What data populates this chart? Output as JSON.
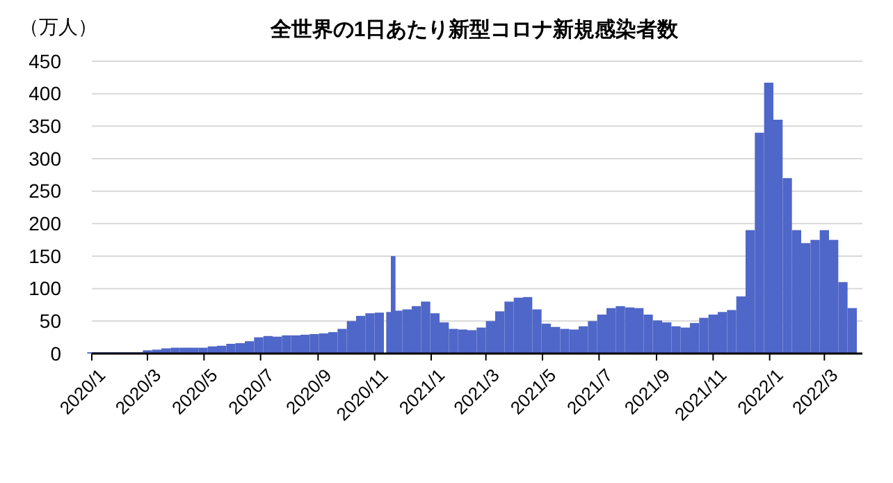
{
  "chart_data": {
    "type": "bar",
    "title": "全世界の1日あたり新型コロナ新規感染者数",
    "ylabel": "（万人）",
    "color": "#4f67c8",
    "grid": "y",
    "xlim": [
      "2020-01-01",
      "2022-04-11"
    ],
    "ylim": [
      0,
      450
    ],
    "yticks": [
      0,
      50,
      100,
      150,
      200,
      250,
      300,
      350,
      400,
      450
    ],
    "xticks": [
      {
        "value": "2020-01-01",
        "label": "2020/1"
      },
      {
        "value": "2020-03-01",
        "label": "2020/3"
      },
      {
        "value": "2020-05-01",
        "label": "2020/5"
      },
      {
        "value": "2020-07-01",
        "label": "2020/7"
      },
      {
        "value": "2020-09-01",
        "label": "2020/9"
      },
      {
        "value": "2020-11-01",
        "label": "2020/11"
      },
      {
        "value": "2021-01-01",
        "label": "2021/1"
      },
      {
        "value": "2021-03-01",
        "label": "2021/3"
      },
      {
        "value": "2021-05-01",
        "label": "2021/5"
      },
      {
        "value": "2021-07-01",
        "label": "2021/7"
      },
      {
        "value": "2021-09-01",
        "label": "2021/9"
      },
      {
        "value": "2021-11-01",
        "label": "2021/11"
      },
      {
        "value": "2022-01-01",
        "label": "2022/1"
      },
      {
        "value": "2022-03-01",
        "label": "2022/3"
      }
    ],
    "x": [
      "2020-01-01",
      "2020-01-11",
      "2020-01-21",
      "2020-01-31",
      "2020-02-10",
      "2020-02-20",
      "2020-03-01",
      "2020-03-11",
      "2020-03-21",
      "2020-03-31",
      "2020-04-10",
      "2020-04-20",
      "2020-04-30",
      "2020-05-10",
      "2020-05-20",
      "2020-05-30",
      "2020-06-09",
      "2020-06-19",
      "2020-06-29",
      "2020-07-09",
      "2020-07-19",
      "2020-07-29",
      "2020-08-08",
      "2020-08-18",
      "2020-08-28",
      "2020-09-07",
      "2020-09-17",
      "2020-09-27",
      "2020-10-07",
      "2020-10-17",
      "2020-10-27",
      "2020-11-06",
      "2020-11-16",
      "2020-11-21",
      "2020-11-26",
      "2020-12-06",
      "2020-12-16",
      "2020-12-26",
      "2021-01-05",
      "2021-01-15",
      "2021-01-25",
      "2021-02-04",
      "2021-02-14",
      "2021-02-24",
      "2021-03-06",
      "2021-03-16",
      "2021-03-26",
      "2021-04-05",
      "2021-04-15",
      "2021-04-25",
      "2021-05-05",
      "2021-05-15",
      "2021-05-25",
      "2021-06-04",
      "2021-06-14",
      "2021-06-24",
      "2021-07-04",
      "2021-07-14",
      "2021-07-24",
      "2021-08-03",
      "2021-08-13",
      "2021-08-23",
      "2021-09-02",
      "2021-09-12",
      "2021-09-22",
      "2021-10-02",
      "2021-10-12",
      "2021-10-22",
      "2021-11-01",
      "2021-11-11",
      "2021-11-21",
      "2021-12-01",
      "2021-12-11",
      "2021-12-21",
      "2021-12-31",
      "2022-01-10",
      "2022-01-20",
      "2022-01-30",
      "2022-02-09",
      "2022-02-19",
      "2022-03-01",
      "2022-03-11",
      "2022-03-21",
      "2022-03-31"
    ],
    "values": [
      2,
      2,
      2,
      2,
      2,
      2,
      5,
      6,
      8,
      9,
      9,
      9,
      9,
      11,
      12,
      15,
      16,
      19,
      25,
      27,
      26,
      28,
      28,
      29,
      30,
      31,
      33,
      38,
      50,
      58,
      62,
      63,
      64,
      150,
      66,
      68,
      73,
      80,
      62,
      48,
      38,
      37,
      36,
      40,
      50,
      65,
      80,
      86,
      87,
      68,
      46,
      41,
      38,
      37,
      42,
      50,
      60,
      70,
      73,
      71,
      70,
      60,
      51,
      48,
      42,
      40,
      47,
      55,
      60,
      64,
      67,
      88,
      190,
      340,
      417,
      360,
      270,
      190,
      170,
      175,
      190,
      175,
      110,
      70
    ]
  }
}
